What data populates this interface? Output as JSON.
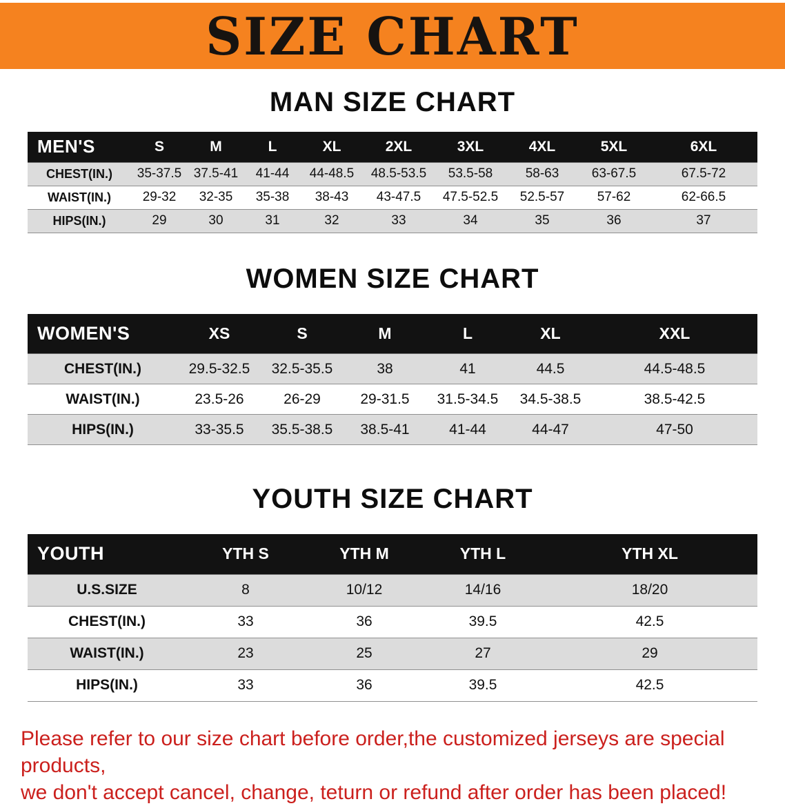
{
  "banner": {
    "title": "SIZE CHART",
    "bg_color": "#F5821F",
    "text_color": "#171310"
  },
  "chart_data": [
    {
      "type": "table",
      "title": "MAN SIZE CHART",
      "header_label": "MEN'S",
      "columns": [
        "S",
        "M",
        "L",
        "XL",
        "2XL",
        "3XL",
        "4XL",
        "5XL",
        "6XL"
      ],
      "rows": [
        {
          "label": "CHEST(IN.)",
          "values": [
            "35-37.5",
            "37.5-41",
            "41-44",
            "44-48.5",
            "48.5-53.5",
            "53.5-58",
            "58-63",
            "63-67.5",
            "67.5-72"
          ]
        },
        {
          "label": "WAIST(IN.)",
          "values": [
            "29-32",
            "32-35",
            "35-38",
            "38-43",
            "43-47.5",
            "47.5-52.5",
            "52.5-57",
            "57-62",
            "62-66.5"
          ]
        },
        {
          "label": "HIPS(IN.)",
          "values": [
            "29",
            "30",
            "31",
            "32",
            "33",
            "34",
            "35",
            "36",
            "37"
          ]
        }
      ]
    },
    {
      "type": "table",
      "title": "WOMEN SIZE CHART",
      "header_label": "WOMEN'S",
      "columns": [
        "XS",
        "S",
        "M",
        "L",
        "XL",
        "XXL"
      ],
      "rows": [
        {
          "label": "CHEST(IN.)",
          "values": [
            "29.5-32.5",
            "32.5-35.5",
            "38",
            "41",
            "44.5",
            "44.5-48.5"
          ]
        },
        {
          "label": "WAIST(IN.)",
          "values": [
            "23.5-26",
            "26-29",
            "29-31.5",
            "31.5-34.5",
            "34.5-38.5",
            "38.5-42.5"
          ]
        },
        {
          "label": "HIPS(IN.)",
          "values": [
            "33-35.5",
            "35.5-38.5",
            "38.5-41",
            "41-44",
            "44-47",
            "47-50"
          ]
        }
      ]
    },
    {
      "type": "table",
      "title": "YOUTH SIZE CHART",
      "header_label": "YOUTH",
      "columns": [
        "YTH S",
        "YTH M",
        "YTH L",
        "YTH XL"
      ],
      "rows": [
        {
          "label": "U.S.SIZE",
          "values": [
            "8",
            "10/12",
            "14/16",
            "18/20"
          ]
        },
        {
          "label": "CHEST(IN.)",
          "values": [
            "33",
            "36",
            "39.5",
            "42.5"
          ]
        },
        {
          "label": "WAIST(IN.)",
          "values": [
            "23",
            "25",
            "27",
            "29"
          ]
        },
        {
          "label": "HIPS(IN.)",
          "values": [
            "33",
            "36",
            "39.5",
            "42.5"
          ]
        }
      ]
    }
  ],
  "footer": {
    "line1": "Please refer to our size chart before order,the customized jerseys are special products,",
    "line2": "we don't accept cancel, change, teturn or refund after order has been placed!",
    "text_color": "#CB201D"
  }
}
